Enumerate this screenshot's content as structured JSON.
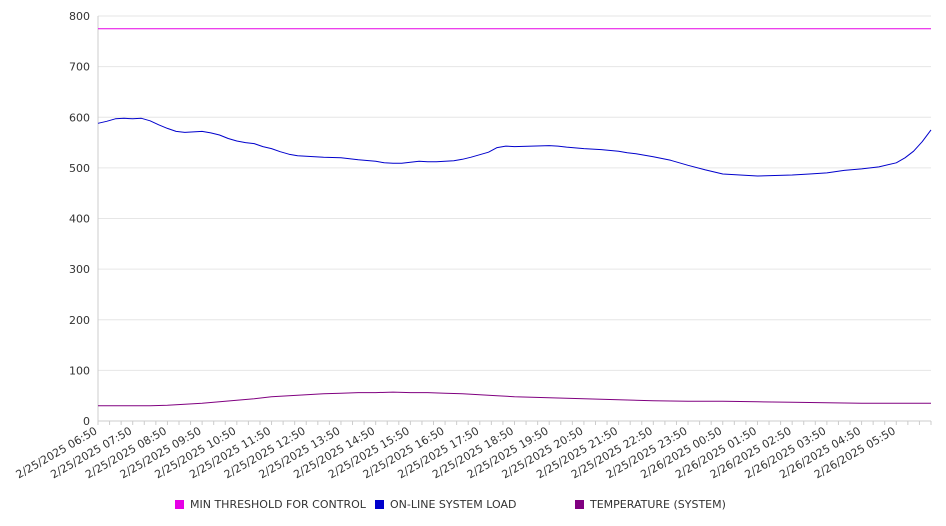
{
  "chart_data": {
    "type": "line",
    "ylim": [
      0,
      800
    ],
    "y_ticks": [
      0,
      100,
      200,
      300,
      400,
      500,
      600,
      700,
      800
    ],
    "grid": true,
    "legend_position": "bottom",
    "x_labels": [
      "2/25/2025 06:50",
      "2/25/2025 07:50",
      "2/25/2025 08:50",
      "2/25/2025 09:50",
      "2/25/2025 10:50",
      "2/25/2025 11:50",
      "2/25/2025 12:50",
      "2/25/2025 13:50",
      "2/25/2025 14:50",
      "2/25/2025 15:50",
      "2/25/2025 16:50",
      "2/25/2025 17:50",
      "2/25/2025 18:50",
      "2/25/2025 19:50",
      "2/25/2025 20:50",
      "2/25/2025 21:50",
      "2/25/2025 22:50",
      "2/25/2025 23:50",
      "2/26/2025 00:50",
      "2/26/2025 01:50",
      "2/26/2025 02:50",
      "2/26/2025 03:50",
      "2/26/2025 04:50",
      "2/26/2025 05:50"
    ],
    "x_hours": [
      0,
      24
    ],
    "series": [
      {
        "name": "MIN THRESHOLD FOR CONTROL",
        "color": "#e600e6",
        "x": [
          0,
          24
        ],
        "y": [
          775,
          775
        ]
      },
      {
        "name": "ON-LINE SYSTEM LOAD",
        "color": "#0000cc",
        "x": [
          0,
          0.25,
          0.5,
          0.75,
          1.0,
          1.25,
          1.5,
          1.75,
          2.0,
          2.25,
          2.5,
          2.75,
          3.0,
          3.25,
          3.5,
          3.75,
          4.0,
          4.25,
          4.5,
          4.75,
          5.0,
          5.25,
          5.5,
          5.75,
          6.0,
          6.5,
          7.0,
          7.5,
          8.0,
          8.25,
          8.5,
          8.75,
          9.0,
          9.25,
          9.5,
          9.75,
          10.0,
          10.25,
          10.5,
          10.75,
          11.0,
          11.25,
          11.5,
          11.75,
          12.0,
          12.5,
          13.0,
          13.25,
          13.5,
          14.0,
          14.5,
          15.0,
          15.25,
          15.5,
          16.0,
          16.5,
          17.0,
          17.5,
          18.0,
          18.5,
          19.0,
          19.5,
          20.0,
          20.5,
          21.0,
          21.5,
          22.0,
          22.5,
          23.0,
          23.25,
          23.5,
          23.75,
          24.0
        ],
        "y": [
          588,
          592,
          597,
          598,
          597,
          598,
          593,
          585,
          578,
          572,
          570,
          571,
          572,
          569,
          565,
          558,
          553,
          550,
          548,
          542,
          538,
          532,
          527,
          524,
          523,
          521,
          520,
          516,
          513,
          510,
          509,
          509,
          511,
          513,
          512,
          512,
          513,
          514,
          517,
          521,
          526,
          531,
          540,
          543,
          542,
          543,
          544,
          543,
          541,
          538,
          536,
          533,
          530,
          528,
          522,
          515,
          505,
          496,
          488,
          486,
          484,
          485,
          486,
          488,
          490,
          495,
          498,
          502,
          510,
          520,
          533,
          552,
          575
        ]
      },
      {
        "name": "TEMPERATURE (SYSTEM)",
        "color": "#800080",
        "x": [
          0,
          0.5,
          1.0,
          1.5,
          2.0,
          2.5,
          3.0,
          3.5,
          4.0,
          4.5,
          5.0,
          5.5,
          6.0,
          6.5,
          7.0,
          7.5,
          8.0,
          8.5,
          9.0,
          9.5,
          10.0,
          10.5,
          11.0,
          11.5,
          12.0,
          12.5,
          13.0,
          14.0,
          15.0,
          16.0,
          17.0,
          18.0,
          19.0,
          20.0,
          21.0,
          22.0,
          23.0,
          24.0
        ],
        "y": [
          30,
          30,
          30,
          30,
          31,
          33,
          35,
          38,
          41,
          44,
          48,
          50,
          52,
          54,
          55,
          56,
          56,
          57,
          56,
          56,
          55,
          54,
          52,
          50,
          48,
          47,
          46,
          44,
          42,
          40,
          39,
          39,
          38,
          37,
          36,
          35,
          35,
          35
        ]
      }
    ]
  }
}
